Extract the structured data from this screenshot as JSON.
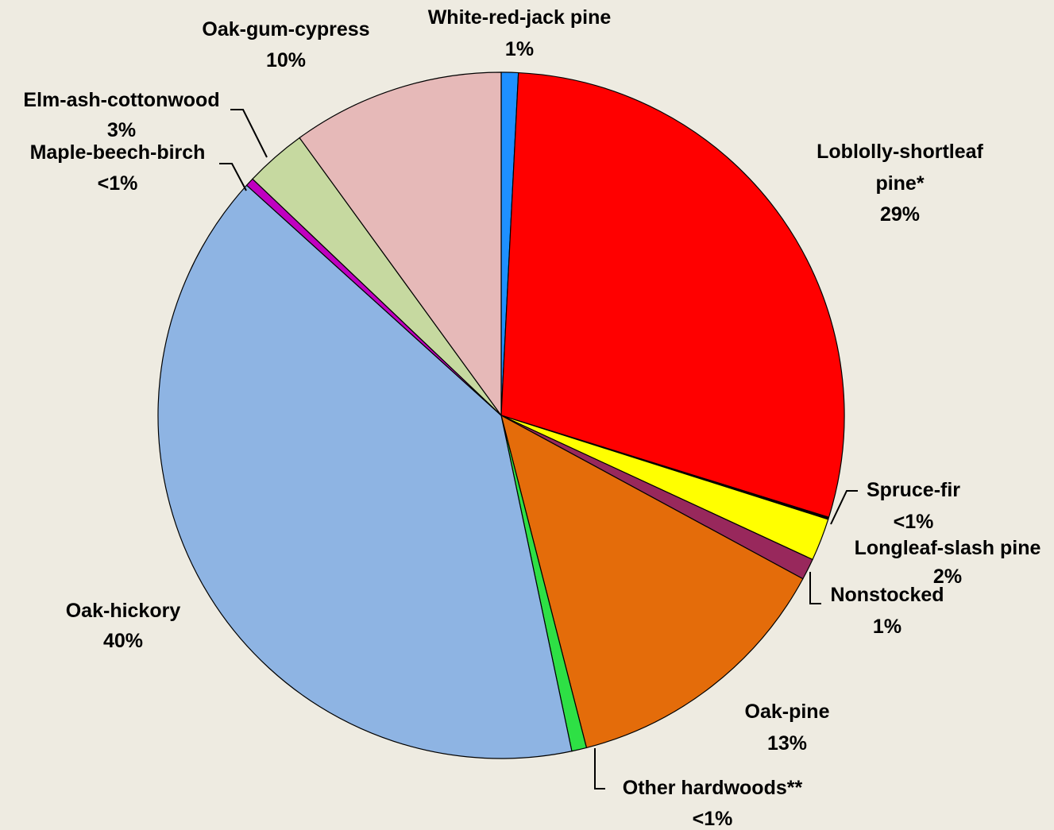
{
  "chart_data": {
    "type": "pie",
    "title": "",
    "slices": [
      {
        "label": "White-red-jack pine",
        "value_label": "1%",
        "value": 0.8,
        "color": "#1E90FF"
      },
      {
        "label": "Loblolly-shortleaf pine*",
        "label_lines": [
          "Loblolly-shortleaf",
          "pine*"
        ],
        "value_label": "29%",
        "value": 29.0,
        "color": "#FF0000"
      },
      {
        "label": "Spruce-fir",
        "value_label": "<1%",
        "value": 0.1,
        "color": "#000000"
      },
      {
        "label": "Longleaf-slash pine",
        "value_label": "2%",
        "value": 2.0,
        "color": "#FFFF00"
      },
      {
        "label": "Nonstocked",
        "value_label": "1%",
        "value": 1.0,
        "color": "#98285C"
      },
      {
        "label": "Oak-pine",
        "value_label": "13%",
        "value": 13.1,
        "color": "#E46C0A"
      },
      {
        "label": "Other hardwoods**",
        "value_label": "<1%",
        "value": 0.7,
        "color": "#2EE045"
      },
      {
        "label": "Oak-hickory",
        "value_label": "40%",
        "value": 40.0,
        "color": "#8EB4E3"
      },
      {
        "label": "Maple-beech-birch",
        "value_label": "<1%",
        "value": 0.4,
        "color": "#C000C0"
      },
      {
        "label": "Elm-ash-cottonwood",
        "value_label": "3%",
        "value": 2.9,
        "color": "#C6D9A0"
      },
      {
        "label": "Oak-gum-cypress",
        "value_label": "10%",
        "value": 10.0,
        "color": "#E6B9B8"
      }
    ]
  }
}
